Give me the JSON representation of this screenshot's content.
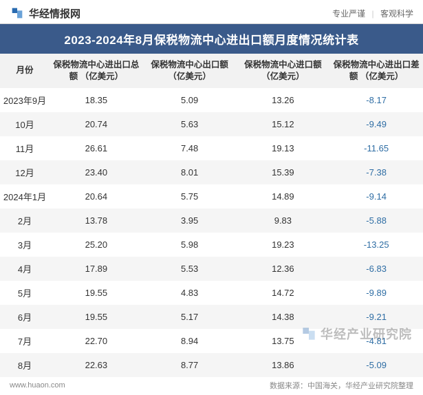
{
  "header": {
    "brand_name": "华经情报网",
    "slogan_1": "专业严谨",
    "slogan_2": "客观科学",
    "logo_color_1": "#2a6bb0",
    "logo_color_2": "#6aa2d8"
  },
  "title": "2023-2024年8月保税物流中心进出口额月度情况统计表",
  "table": {
    "columns": [
      "月份",
      "保税物流中心进出口总额\n（亿美元）",
      "保税物流中心出口额\n（亿美元）",
      "保税物流中心进口额\n（亿美元）",
      "保税物流中心进出口差额\n（亿美元）"
    ],
    "rows": [
      {
        "month": "2023年9月",
        "total": "18.35",
        "export": "5.09",
        "import": "13.26",
        "diff": "-8.17"
      },
      {
        "month": "10月",
        "total": "20.74",
        "export": "5.63",
        "import": "15.12",
        "diff": "-9.49"
      },
      {
        "month": "11月",
        "total": "26.61",
        "export": "7.48",
        "import": "19.13",
        "diff": "-11.65"
      },
      {
        "month": "12月",
        "total": "23.40",
        "export": "8.01",
        "import": "15.39",
        "diff": "-7.38"
      },
      {
        "month": "2024年1月",
        "total": "20.64",
        "export": "5.75",
        "import": "14.89",
        "diff": "-9.14"
      },
      {
        "month": "2月",
        "total": "13.78",
        "export": "3.95",
        "import": "9.83",
        "diff": "-5.88"
      },
      {
        "month": "3月",
        "total": "25.20",
        "export": "5.98",
        "import": "19.23",
        "diff": "-13.25"
      },
      {
        "month": "4月",
        "total": "17.89",
        "export": "5.53",
        "import": "12.36",
        "diff": "-6.83"
      },
      {
        "month": "5月",
        "total": "19.55",
        "export": "4.83",
        "import": "14.72",
        "diff": "-9.89"
      },
      {
        "month": "6月",
        "total": "19.55",
        "export": "5.17",
        "import": "14.38",
        "diff": "-9.21"
      },
      {
        "month": "7月",
        "total": "22.70",
        "export": "8.94",
        "import": "13.75",
        "diff": "-4.81"
      },
      {
        "month": "8月",
        "total": "22.63",
        "export": "8.77",
        "import": "13.86",
        "diff": "-5.09"
      }
    ],
    "header_bg": "#f2f2f2",
    "row_even_bg": "#f5f5f5",
    "row_odd_bg": "#ffffff",
    "neg_color": "#2e6da4",
    "text_color": "#333333",
    "font_size_body": 13,
    "font_size_header": 12.5
  },
  "title_bar": {
    "bg": "#3a5a8a",
    "color": "#ffffff",
    "font_size": 17
  },
  "footer": {
    "url": "www.huaon.com",
    "source": "数据来源：中国海关，华经产业研究院整理"
  },
  "watermark": {
    "text": "华经产业研究院"
  }
}
